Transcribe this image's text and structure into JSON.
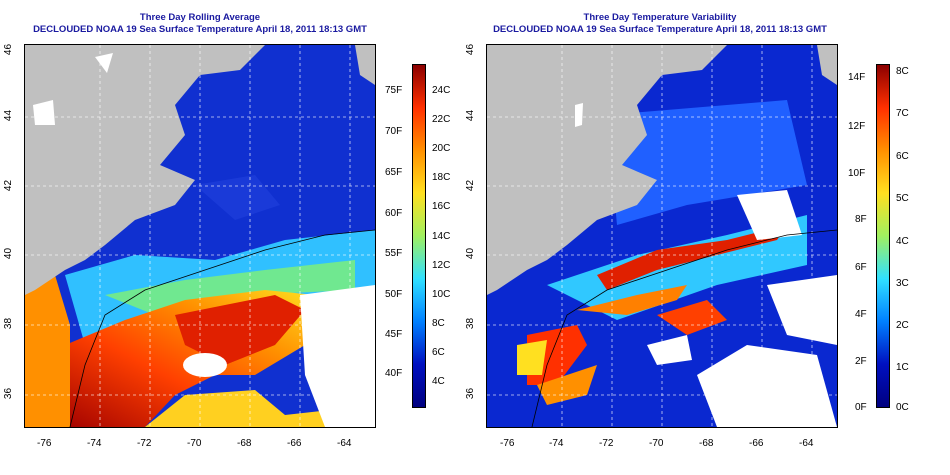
{
  "left": {
    "title_line1": "Three Day Rolling Average",
    "title_line2": "DECLOUDED NOAA 19 Sea Surface Temperature April 18, 2011 18:13 GMT",
    "colorbar_f": [
      "75F",
      "70F",
      "65F",
      "60F",
      "55F",
      "50F",
      "45F",
      "40F"
    ],
    "colorbar_c": [
      "24C",
      "22C",
      "20C",
      "18C",
      "16C",
      "14C",
      "12C",
      "10C",
      "8C",
      "6C",
      "4C"
    ],
    "colors": [
      "#8b0000",
      "#ff3000",
      "#ff9000",
      "#ffe020",
      "#a0f060",
      "#30e0ff",
      "#0080ff",
      "#0010c0",
      "#000080"
    ]
  },
  "right": {
    "title_line1": "Three Day Temperature Variability",
    "title_line2": "DECLOUDED NOAA 19 Sea Surface Temperature April 18, 2011 18:13 GMT",
    "colorbar_f": [
      "14F",
      "12F",
      "10F",
      "8F",
      "6F",
      "4F",
      "2F",
      "0F"
    ],
    "colorbar_c": [
      "8C",
      "7C",
      "6C",
      "5C",
      "4C",
      "3C",
      "2C",
      "1C",
      "0C"
    ],
    "colors": [
      "#8b0000",
      "#ff3000",
      "#ff9000",
      "#ffe020",
      "#a0f060",
      "#30e0ff",
      "#0080ff",
      "#0010c0",
      "#000080"
    ]
  },
  "axes": {
    "x_ticks": [
      "-76",
      "-74",
      "-72",
      "-70",
      "-68",
      "-66",
      "-64"
    ],
    "y_ticks": [
      "46",
      "44",
      "42",
      "40",
      "38",
      "36"
    ]
  },
  "land_color": "#c0c0c0",
  "title_color": "#1a1aa0"
}
